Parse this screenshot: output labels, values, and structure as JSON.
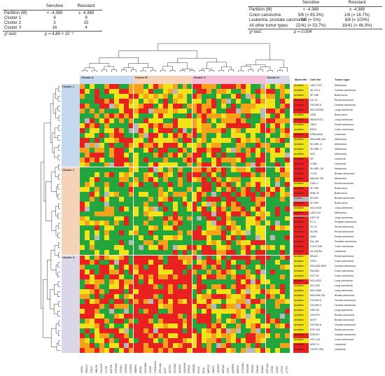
{
  "left_table": {
    "header": [
      "",
      "Sensitive",
      "Resistant"
    ],
    "rows": [
      [
        "Partition (M)",
        "< -4.388",
        "≥ -4.388"
      ],
      [
        "Cluster 1",
        "8",
        "9"
      ],
      [
        "Cluster 2",
        "3",
        "15"
      ],
      [
        "Cluster 3",
        "16",
        "4"
      ]
    ],
    "test_label": "χ²-test:",
    "test_value": "p = 4.89 × 10⁻³"
  },
  "right_table": {
    "header": [
      "",
      "Sensitive",
      "Resistant"
    ],
    "rows": [
      [
        "Partition (M)",
        "< -4.388",
        "≥ -4.388"
      ],
      [
        "Colon carcinoma",
        "5/6 (= 83.3%)",
        "1/6 (= 16.7%)"
      ],
      [
        "Leukemia, prostate carcinoma",
        "0/8 (= 0%)",
        "8/8 (= 100%)"
      ],
      [
        "All other tumor types",
        "22/41 (= 53.7%)",
        "19/41 (= 46.3%)"
      ]
    ],
    "test_label": "χ²-test:",
    "test_value": "p = 0.004"
  },
  "column_clusters": [
    {
      "name": "Cluster A",
      "color": "#c5d9ee"
    },
    {
      "name": "Cluster B",
      "color": "#f6d3b8"
    },
    {
      "name": "Cluster C",
      "color": "#f6bfd6"
    },
    {
      "name": "Cluster D",
      "color": "#dcd7e8"
    }
  ],
  "row_clusters": [
    {
      "name": "Cluster 1",
      "color": "#c5d9ee"
    },
    {
      "name": "Cluster 2",
      "color": "#f6d3b8"
    },
    {
      "name": "Cluster 3",
      "color": "#dcd7e8"
    }
  ],
  "heatmap_headers": {
    "sensitivity": "Myricetin",
    "cell_line": "Cell line",
    "tumor_type": "Tumor type"
  },
  "colors": {
    "red": "#e8201f",
    "orange": "#f7a21b",
    "yellow": "#f2e21a",
    "green": "#24a63e",
    "gray": "#b9b9b9",
    "sensitive": "#f2e21a",
    "resistant": "#e8201f",
    "median": "#b9b9b9"
  },
  "chart_data": {
    "type": "heatmap",
    "genes": [
      "CDK2",
      "FBXO2",
      "TNKS",
      "NELFA",
      "POLR2I",
      "CCT8",
      "ASF1B",
      "ZNF428",
      "TSTA3",
      "GDPD2",
      "DUSP6",
      "RBBP4",
      "MTA2",
      "DDX39B",
      "CD69",
      "CSNK2A3",
      "RPL18A",
      "ILF3",
      "GSTP1",
      "SLC9A1",
      "ANXA5",
      "NDUFA5",
      "EPB41",
      "HMGB1",
      "ELK3",
      "BLM",
      "MEF2C",
      "MMP1",
      "ODNR1",
      "BRCA1",
      "FOS",
      "IGFBP6",
      "BIRC5",
      "CTNNB1",
      "PDGFB",
      "TPD52",
      "NFKB1",
      "GNAI2",
      "EEF1A1",
      "CTSB",
      "SOD2",
      "CTSD",
      "CTTN"
    ],
    "cell_lines": [
      {
        "name": "UACC-257",
        "tumor": "Melanoma",
        "sens": "sensitive"
      },
      {
        "name": "SK-OV-3",
        "tumor": "Ovarian carcinoma",
        "sens": "sensitive"
      },
      {
        "name": "SF-268",
        "tumor": "Brain tumor",
        "sens": "sensitive"
      },
      {
        "name": "UO-31",
        "tumor": "Renal carcinoma",
        "sens": "resistant"
      },
      {
        "name": "OVCAR-5",
        "tumor": "Ovarian carcinoma",
        "sens": "resistant"
      },
      {
        "name": "NCI-H322M",
        "tumor": "Lung carcinoma",
        "sens": "resistant"
      },
      {
        "name": "U251",
        "tumor": "Brain tumor",
        "sens": "sensitive"
      },
      {
        "name": "A549/ATCC",
        "tumor": "Lung carcinoma",
        "sens": "resistant"
      },
      {
        "name": "786-0",
        "tumor": "Renal carcinoma",
        "sens": "sensitive"
      },
      {
        "name": "KM12",
        "tumor": "Colon carcinoma",
        "sens": "sensitive"
      },
      {
        "name": "RPMI-8226",
        "tumor": "Leukemia",
        "sens": "resistant"
      },
      {
        "name": "MDA-MB-435",
        "tumor": "Melanoma",
        "sens": "sensitive"
      },
      {
        "name": "SK-MEL-5",
        "tumor": "Melanoma",
        "sens": "sensitive"
      },
      {
        "name": "SK-MEL-2",
        "tumor": "Melanoma",
        "sens": "sensitive"
      },
      {
        "name": "M14",
        "tumor": "Melanoma",
        "sens": "sensitive"
      },
      {
        "name": "SR",
        "tumor": "Leukemia",
        "sens": "resistant"
      },
      {
        "name": "K-562",
        "tumor": "Leukemia",
        "sens": "resistant"
      },
      {
        "name": "SK-MEL-28",
        "tumor": "Melanoma",
        "sens": "resistant"
      },
      {
        "name": "T-47D",
        "tumor": "Breast carcinoma",
        "sens": "resistant"
      },
      {
        "name": "MALME-3M",
        "tumor": "Melanoma",
        "sens": "resistant"
      },
      {
        "name": "CAKI-1",
        "tumor": "Renal carcinoma",
        "sens": "sensitive"
      },
      {
        "name": "SF-295",
        "tumor": "Brain tumor",
        "sens": "resistant"
      },
      {
        "name": "SNB-75",
        "tumor": "Brain tumor",
        "sens": "resistant"
      },
      {
        "name": "BT-549",
        "tumor": "Breast carcinoma",
        "sens": "median"
      },
      {
        "name": "SF-539",
        "tumor": "Brain tumor",
        "sens": "resistant"
      },
      {
        "name": "NCI-H226",
        "tumor": "Lung carcinoma",
        "sens": "sensitive"
      },
      {
        "name": "UACC-62",
        "tumor": "Melanoma",
        "sens": "resistant"
      },
      {
        "name": "HOP-92",
        "tumor": "Lung carcinoma",
        "sens": "resistant"
      },
      {
        "name": "PC-3",
        "tumor": "Prostate carcinoma",
        "sens": "resistant"
      },
      {
        "name": "TK-10",
        "tumor": "Renal carcinoma",
        "sens": "resistant"
      },
      {
        "name": "ACHN",
        "tumor": "Renal carcinoma",
        "sens": "resistant"
      },
      {
        "name": "A498",
        "tumor": "Renal carcinoma",
        "sens": "resistant"
      },
      {
        "name": "DU-145",
        "tumor": "Prostate carcinoma",
        "sens": "resistant"
      },
      {
        "name": "COLO 205",
        "tumor": "Colon carcinoma",
        "sens": "resistant"
      },
      {
        "name": "HL-60(TB)",
        "tumor": "Leukemia",
        "sens": "resistant"
      },
      {
        "name": "SN12C",
        "tumor": "Renal carcinoma",
        "sens": "sensitive"
      },
      {
        "name": "HT29",
        "tumor": "Colon carcinoma",
        "sens": "sensitive"
      },
      {
        "name": "NCI/ADR-RES",
        "tumor": "Ovarian carcinoma",
        "sens": "sensitive"
      },
      {
        "name": "SW-620",
        "tumor": "Colon carcinoma",
        "sens": "sensitive"
      },
      {
        "name": "HCT-15",
        "tumor": "Colon carcinoma",
        "sens": "sensitive"
      },
      {
        "name": "NCI-H522",
        "tumor": "Lung carcinoma",
        "sens": "resistant"
      },
      {
        "name": "NCI-H23",
        "tumor": "Lung carcinoma",
        "sens": "sensitive"
      },
      {
        "name": "NCI-H460",
        "tumor": "Lung carcinoma",
        "sens": "sensitive"
      },
      {
        "name": "MDA-MB-231",
        "tumor": "Breast carcinoma",
        "sens": "sensitive"
      },
      {
        "name": "OVCAR-4",
        "tumor": "Ovarian carcinoma",
        "sens": "sensitive"
      },
      {
        "name": "OVCAR-3",
        "tumor": "Ovarian carcinoma",
        "sens": "sensitive"
      },
      {
        "name": "HOP-62",
        "tumor": "Lung carcinoma",
        "sens": "sensitive"
      },
      {
        "name": "HS 578T",
        "tumor": "Breast carcinoma",
        "sens": "sensitive"
      },
      {
        "name": "MCF7",
        "tumor": "Breast carcinoma",
        "sens": "sensitive"
      },
      {
        "name": "OVCAR-8",
        "tumor": "Ovarian carcinoma",
        "sens": "sensitive"
      },
      {
        "name": "RXF 393",
        "tumor": "Renal carcinoma",
        "sens": "sensitive"
      },
      {
        "name": "IGROV1",
        "tumor": "Ovarian carcinoma",
        "sens": "resistant"
      },
      {
        "name": "HCT-116",
        "tumor": "Colon carcinoma",
        "sens": "sensitive"
      },
      {
        "name": "MOLT-4",
        "tumor": "Leukemia",
        "sens": "resistant"
      },
      {
        "name": "CCRF-CEM",
        "tumor": "Leukemia",
        "sens": "resistant"
      }
    ]
  }
}
